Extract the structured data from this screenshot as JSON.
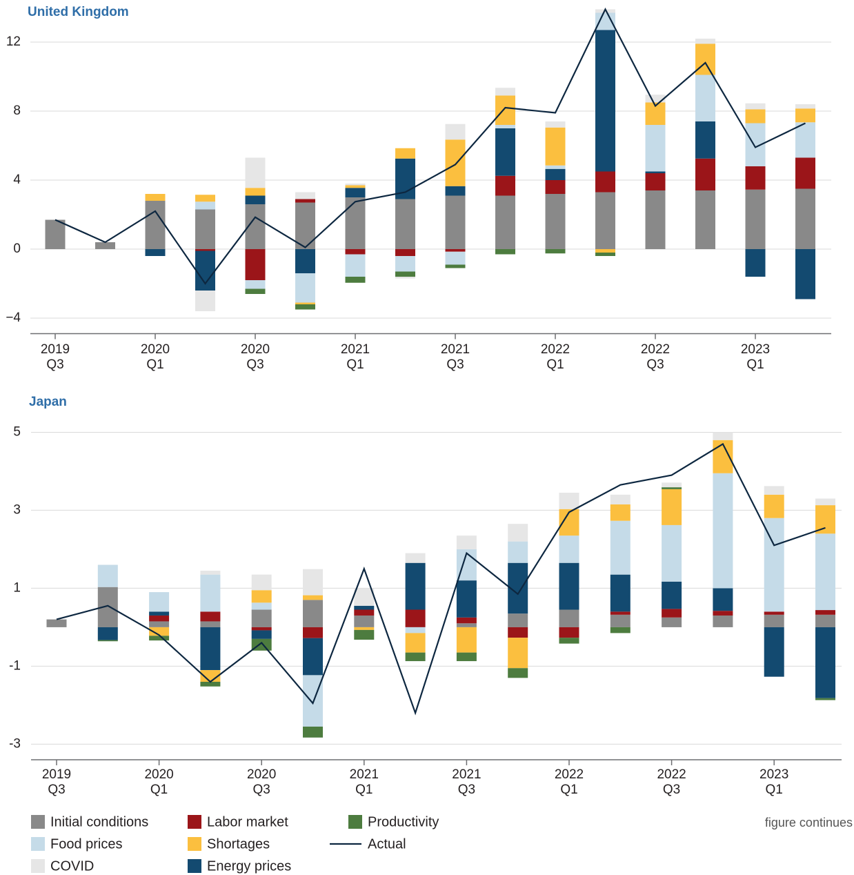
{
  "chart_data": [
    {
      "type": "bar",
      "title": "United Kingdom",
      "categories": [
        [
          "2019",
          "Q3"
        ],
        null,
        [
          "2020",
          "Q1"
        ],
        null,
        [
          "2020",
          "Q3"
        ],
        null,
        [
          "2021",
          "Q1"
        ],
        null,
        [
          "2021",
          "Q3"
        ],
        null,
        [
          "2022",
          "Q1"
        ],
        null,
        [
          "2022",
          "Q3"
        ],
        null,
        [
          "2023",
          "Q1"
        ],
        null
      ],
      "series": [
        {
          "name": "Initial conditions",
          "color": "#898989",
          "values": [
            1.7,
            0.4,
            2.8,
            2.3,
            2.6,
            2.7,
            3.0,
            2.9,
            3.1,
            3.1,
            3.2,
            3.3,
            3.4,
            3.4,
            3.45,
            3.5
          ]
        },
        {
          "name": "Labor market",
          "color": "#9b1519",
          "values": [
            0,
            0,
            0,
            -0.1,
            -1.8,
            0.2,
            -0.3,
            -0.4,
            -0.15,
            1.15,
            0.8,
            1.2,
            1.0,
            1.85,
            1.35,
            1.8
          ]
        },
        {
          "name": "Energy prices",
          "color": "#134a70",
          "values": [
            0,
            0,
            -0.4,
            -2.3,
            0.5,
            -1.4,
            0.55,
            2.35,
            0.55,
            2.75,
            0.65,
            8.2,
            0.1,
            2.15,
            -1.6,
            -2.9
          ]
        },
        {
          "name": "Food prices",
          "color": "#c5dbe8",
          "values": [
            0,
            0,
            0,
            0.45,
            -0.5,
            -1.7,
            -1.3,
            -0.9,
            -0.75,
            0.2,
            0.2,
            1.0,
            2.7,
            2.7,
            2.5,
            2.05
          ]
        },
        {
          "name": "Shortages",
          "color": "#fbbf3f",
          "values": [
            0,
            0,
            0.4,
            0.4,
            0.45,
            -0.1,
            0.15,
            0.6,
            2.7,
            1.7,
            2.2,
            -0.2,
            1.3,
            1.8,
            0.8,
            0.8
          ]
        },
        {
          "name": "Productivity",
          "color": "#4d7c3f",
          "values": [
            0,
            0,
            0,
            0,
            -0.3,
            -0.3,
            -0.35,
            -0.3,
            -0.2,
            -0.3,
            -0.25,
            -0.2,
            0,
            0,
            0,
            0
          ]
        },
        {
          "name": "COVID",
          "color": "#e6e6e6",
          "values": [
            0,
            0,
            0,
            -1.2,
            1.75,
            0.4,
            0.1,
            -0.1,
            0.9,
            0.45,
            0.35,
            0.2,
            0.45,
            0.3,
            0.35,
            0.25
          ]
        },
        {
          "name": "Actual",
          "type": "line",
          "color": "#0d2740",
          "values": [
            1.7,
            0.4,
            2.2,
            -2.0,
            1.85,
            0.1,
            2.75,
            3.3,
            4.9,
            8.2,
            7.9,
            13.9,
            8.3,
            10.8,
            5.9,
            7.3
          ]
        }
      ],
      "ylim": [
        -4.9,
        14
      ],
      "yticks": [
        {
          "value": -4,
          "label": "−4"
        },
        0,
        4,
        8,
        12
      ],
      "grid": true
    },
    {
      "type": "bar",
      "title": "Japan",
      "categories": [
        [
          "2019",
          "Q3"
        ],
        null,
        [
          "2020",
          "Q1"
        ],
        null,
        [
          "2020",
          "Q3"
        ],
        null,
        [
          "2021",
          "Q1"
        ],
        null,
        [
          "2021",
          "Q3"
        ],
        null,
        [
          "2022",
          "Q1"
        ],
        null,
        [
          "2022",
          "Q3"
        ],
        null,
        [
          "2023",
          "Q1"
        ],
        null
      ],
      "series": [
        {
          "name": "Initial conditions",
          "color": "#898989",
          "values": [
            0.2,
            1.03,
            0.15,
            0.15,
            0.45,
            0.7,
            0.3,
            0,
            0.1,
            0.35,
            0.45,
            0.32,
            0.25,
            0.3,
            0.32,
            0.32
          ]
        },
        {
          "name": "Labor market",
          "color": "#9b1519",
          "values": [
            0,
            0,
            0.15,
            0.25,
            -0.08,
            -0.28,
            0.15,
            0.45,
            0.15,
            -0.27,
            -0.27,
            0.08,
            0.22,
            0.12,
            0.08,
            0.12
          ]
        },
        {
          "name": "Energy prices",
          "color": "#134a70",
          "values": [
            0,
            -0.33,
            0.1,
            -1.1,
            -0.22,
            -0.95,
            0.1,
            1.2,
            0.95,
            1.3,
            1.2,
            0.95,
            0.7,
            0.58,
            -1.27,
            -1.82
          ]
        },
        {
          "name": "Food prices",
          "color": "#c5dbe8",
          "values": [
            0,
            0.57,
            0.5,
            0.95,
            0.18,
            -1.32,
            0,
            -0.15,
            0.8,
            0.55,
            0.7,
            1.38,
            1.45,
            2.95,
            2.4,
            1.96
          ]
        },
        {
          "name": "Shortages",
          "color": "#fbbf3f",
          "values": [
            0,
            0,
            -0.22,
            -0.3,
            0.32,
            0.12,
            -0.07,
            -0.5,
            -0.65,
            -0.78,
            0.68,
            0.42,
            0.92,
            0.85,
            0.6,
            0.73
          ]
        },
        {
          "name": "Productivity",
          "color": "#4d7c3f",
          "values": [
            0,
            -0.03,
            -0.12,
            -0.12,
            -0.3,
            -0.28,
            -0.25,
            -0.22,
            -0.22,
            -0.25,
            -0.15,
            -0.15,
            0.05,
            0,
            0,
            -0.05
          ]
        },
        {
          "name": "COVID",
          "color": "#e6e6e6",
          "values": [
            0,
            0,
            0,
            0.1,
            0.4,
            0.67,
            0.45,
            0.25,
            0.35,
            0.45,
            0.42,
            0.25,
            0.12,
            0.2,
            0.22,
            0.17
          ]
        },
        {
          "name": "Actual",
          "type": "line",
          "color": "#0d2740",
          "values": [
            0.2,
            0.55,
            -0.2,
            -1.4,
            -0.4,
            -1.95,
            1.5,
            -2.2,
            1.9,
            0.85,
            2.95,
            3.65,
            3.9,
            4.7,
            2.1,
            2.55
          ]
        }
      ],
      "ylim": [
        -3.4,
        5.3
      ],
      "yticks": [
        -3,
        -1,
        1,
        3,
        5
      ],
      "grid": true
    }
  ],
  "note": "figure continues"
}
